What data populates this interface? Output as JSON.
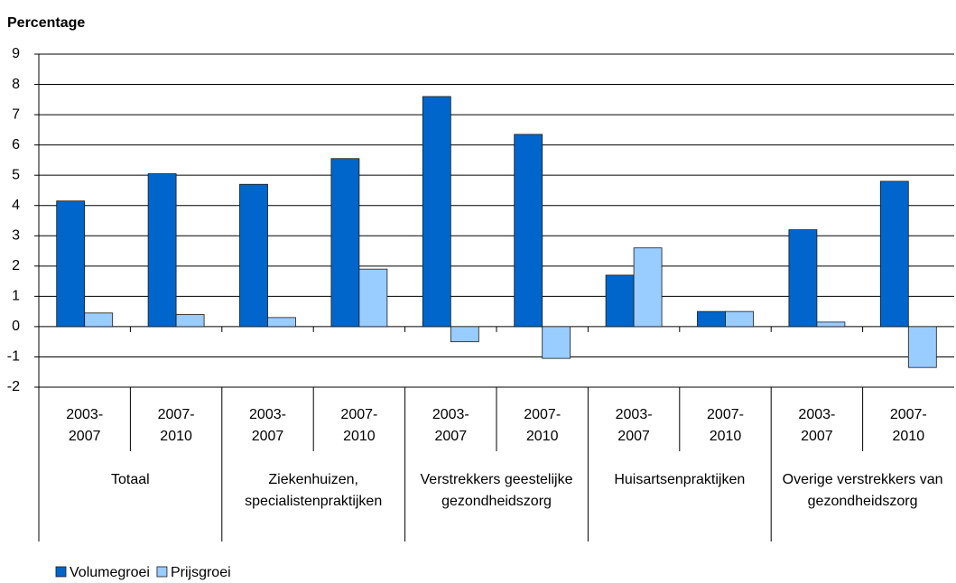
{
  "chart_data": {
    "type": "bar",
    "ylabel": "Percentage",
    "categories": [
      "2003-2007",
      "2007-2010",
      "2003-2007",
      "2007-2010",
      "2003-2007",
      "2007-2010",
      "2003-2007",
      "2007-2010",
      "2003-2007",
      "2007-2010"
    ],
    "groups": [
      "Totaal",
      "Ziekenhuizen, specialistenpraktijken",
      "Verstrekkers geestelijke gezondheidszorg",
      "Huisartsenpraktijken",
      "Overige verstrekkers van gezondheidszorg"
    ],
    "series": [
      {
        "name": "Volumegroei",
        "color": "#0066cc",
        "values": [
          4.15,
          5.05,
          4.7,
          5.55,
          7.6,
          6.35,
          1.7,
          0.5,
          3.2,
          4.8
        ]
      },
      {
        "name": "Prijsgroei",
        "color": "#99ccff",
        "values": [
          0.45,
          0.4,
          0.3,
          1.9,
          -0.5,
          -1.05,
          2.6,
          0.5,
          0.15,
          -1.35
        ]
      }
    ],
    "ylim": [
      -2,
      9
    ],
    "yticks": [
      -2,
      -1,
      0,
      1,
      2,
      3,
      4,
      5,
      6,
      7,
      8,
      9
    ],
    "grid": true,
    "legend": "bottom-left"
  }
}
